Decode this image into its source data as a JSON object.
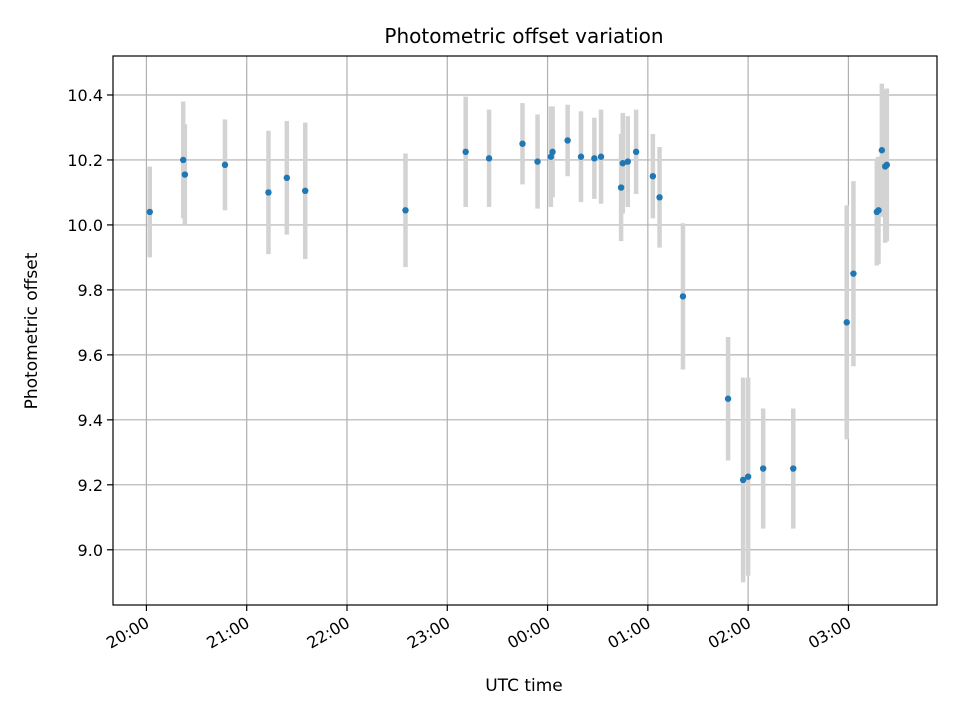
{
  "chart_data": {
    "type": "scatter",
    "title": "Photometric offset variation",
    "xlabel": "UTC time",
    "ylabel": "Photometric offset",
    "xlim": [
      "19:40",
      "03:53"
    ],
    "ylim": [
      8.83,
      10.52
    ],
    "x_ticks": [
      "20:00",
      "21:00",
      "22:00",
      "23:00",
      "00:00",
      "01:00",
      "02:00",
      "03:00"
    ],
    "y_ticks": [
      "9.0",
      "9.2",
      "9.4",
      "9.6",
      "9.8",
      "10.0",
      "10.2",
      "10.4"
    ],
    "grid": true,
    "series": [
      {
        "marker_color": "#1f77b4",
        "errorbar_color": "#d3d3d3",
        "points": [
          {
            "x": "20:02",
            "y": 10.04,
            "err": 0.14
          },
          {
            "x": "20:22",
            "y": 10.2,
            "err": 0.18
          },
          {
            "x": "20:23",
            "y": 10.155,
            "err": 0.155
          },
          {
            "x": "20:47",
            "y": 10.185,
            "err": 0.14
          },
          {
            "x": "21:13",
            "y": 10.1,
            "err": 0.19
          },
          {
            "x": "21:24",
            "y": 10.145,
            "err": 0.175
          },
          {
            "x": "21:35",
            "y": 10.105,
            "err": 0.21
          },
          {
            "x": "22:35",
            "y": 10.045,
            "err": 0.175
          },
          {
            "x": "23:11",
            "y": 10.225,
            "err": 0.17
          },
          {
            "x": "23:25",
            "y": 10.205,
            "err": 0.15
          },
          {
            "x": "23:45",
            "y": 10.25,
            "err": 0.125
          },
          {
            "x": "23:54",
            "y": 10.195,
            "err": 0.145
          },
          {
            "x": "00:02",
            "y": 10.21,
            "err": 0.155
          },
          {
            "x": "00:03",
            "y": 10.225,
            "err": 0.14
          },
          {
            "x": "00:12",
            "y": 10.26,
            "err": 0.11
          },
          {
            "x": "00:20",
            "y": 10.21,
            "err": 0.14
          },
          {
            "x": "00:28",
            "y": 10.205,
            "err": 0.125
          },
          {
            "x": "00:32",
            "y": 10.21,
            "err": 0.145
          },
          {
            "x": "00:44",
            "y": 10.115,
            "err": 0.165
          },
          {
            "x": "00:45",
            "y": 10.19,
            "err": 0.155
          },
          {
            "x": "00:48",
            "y": 10.195,
            "err": 0.14
          },
          {
            "x": "00:53",
            "y": 10.225,
            "err": 0.13
          },
          {
            "x": "01:03",
            "y": 10.15,
            "err": 0.13
          },
          {
            "x": "01:07",
            "y": 10.085,
            "err": 0.155
          },
          {
            "x": "01:21",
            "y": 9.78,
            "err": 0.225
          },
          {
            "x": "01:48",
            "y": 9.465,
            "err": 0.19
          },
          {
            "x": "01:57",
            "y": 9.215,
            "err": 0.315
          },
          {
            "x": "02:00",
            "y": 9.225,
            "err": 0.305
          },
          {
            "x": "02:09",
            "y": 9.25,
            "err": 0.185
          },
          {
            "x": "02:27",
            "y": 9.25,
            "err": 0.185
          },
          {
            "x": "02:59",
            "y": 9.7,
            "err": 0.36
          },
          {
            "x": "03:03",
            "y": 9.85,
            "err": 0.285
          },
          {
            "x": "03:17",
            "y": 10.04,
            "err": 0.165
          },
          {
            "x": "03:18",
            "y": 10.045,
            "err": 0.165
          },
          {
            "x": "03:20",
            "y": 10.23,
            "err": 0.205
          },
          {
            "x": "03:22",
            "y": 10.18,
            "err": 0.235
          },
          {
            "x": "03:23",
            "y": 10.185,
            "err": 0.235
          }
        ]
      }
    ]
  }
}
